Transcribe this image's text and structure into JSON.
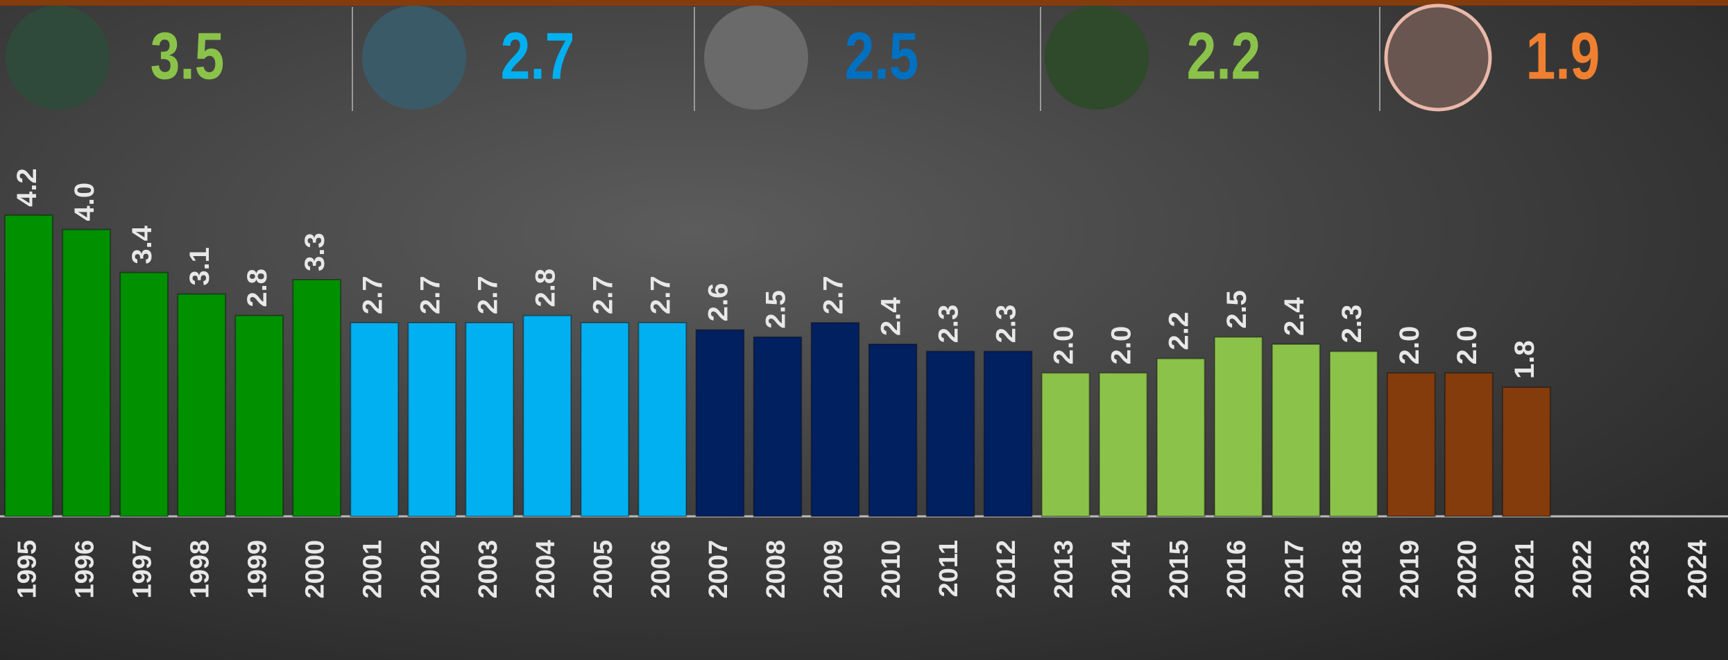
{
  "header": {
    "averages": [
      {
        "value": 3.5,
        "color": "#8bc34a"
      },
      {
        "value": 2.7,
        "color": "#00b0f0"
      },
      {
        "value": 2.5,
        "color": "#0070c0"
      },
      {
        "value": 2.2,
        "color": "#8bc34a"
      },
      {
        "value": 1.9,
        "color": "#f08030"
      }
    ]
  },
  "chart_data": {
    "type": "bar",
    "categories": [
      "1995",
      "1996",
      "1997",
      "1998",
      "1999",
      "2000",
      "2001",
      "2002",
      "2003",
      "2004",
      "2005",
      "2006",
      "2007",
      "2008",
      "2009",
      "2010",
      "2011",
      "2012",
      "2013",
      "2014",
      "2015",
      "2016",
      "2017",
      "2018",
      "2019",
      "2020",
      "2021",
      "2022",
      "2023",
      "2024"
    ],
    "values": [
      4.2,
      4.0,
      3.4,
      3.1,
      2.8,
      3.3,
      2.7,
      2.7,
      2.7,
      2.8,
      2.7,
      2.7,
      2.6,
      2.5,
      2.7,
      2.4,
      2.3,
      2.3,
      2.0,
      2.0,
      2.2,
      2.5,
      2.4,
      2.3,
      2.0,
      2.0,
      1.8,
      null,
      null,
      null
    ],
    "value_labels": [
      "4.2",
      "4.0",
      "3.4",
      "3.1",
      "2.8",
      "3.3",
      "2.7",
      "2.7",
      "2.7",
      "2.8",
      "2.7",
      "2.7",
      "2.6",
      "2.5",
      "2.7",
      "2.4",
      "2.3",
      "2.3",
      "2.0",
      "2.0",
      "2.2",
      "2.5",
      "2.4",
      "2.3",
      "2.0",
      "2.0",
      "1.8",
      null,
      null,
      null
    ],
    "colors": [
      "#009000",
      "#009000",
      "#009000",
      "#009000",
      "#009000",
      "#009000",
      "#00b0f0",
      "#00b0f0",
      "#00b0f0",
      "#00b0f0",
      "#00b0f0",
      "#00b0f0",
      "#002060",
      "#002060",
      "#002060",
      "#002060",
      "#002060",
      "#002060",
      "#8bc34a",
      "#8bc34a",
      "#8bc34a",
      "#8bc34a",
      "#8bc34a",
      "#8bc34a",
      "#843c0c",
      "#843c0c",
      "#843c0c",
      null,
      null,
      null
    ],
    "ylim": [
      0,
      6
    ]
  }
}
